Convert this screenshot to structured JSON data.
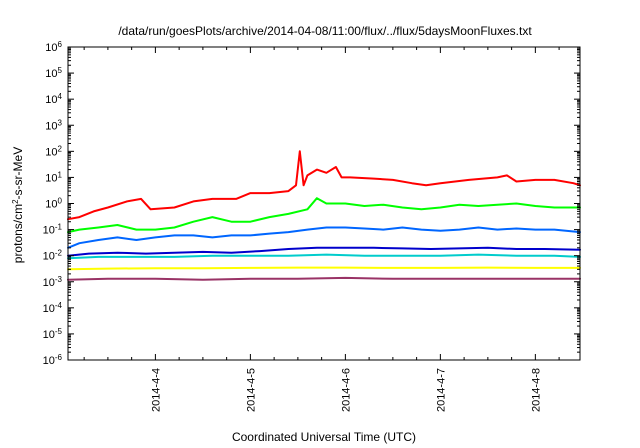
{
  "chart_data": {
    "type": "line",
    "title": "/data/run/goesPlots/archive/2014-04-08/11:00/flux/../flux/5daysMoonFluxes.txt",
    "xlabel": "Coordinated Universal Time (UTC)",
    "ylabel_pre": "protons/cm",
    "ylabel_sup": "2",
    "ylabel_post": "-s-sr-MeV",
    "yscale": "log",
    "ylim": [
      1e-06,
      1000000.0
    ],
    "xlim": [
      3.08,
      8.47
    ],
    "grid": false,
    "legend": "none",
    "x_ticks": [
      {
        "x": 4,
        "label": "2014-4-4"
      },
      {
        "x": 5,
        "label": "2014-4-5"
      },
      {
        "x": 6,
        "label": "2014-4-6"
      },
      {
        "x": 7,
        "label": "2014-4-7"
      },
      {
        "x": 8,
        "label": "2014-4-8"
      }
    ],
    "y_ticks": [
      {
        "exp": -6,
        "label": "10",
        "sup": "-6"
      },
      {
        "exp": -5,
        "label": "10",
        "sup": "-5"
      },
      {
        "exp": -4,
        "label": "10",
        "sup": "-4"
      },
      {
        "exp": -3,
        "label": "10",
        "sup": "-3"
      },
      {
        "exp": -2,
        "label": "10",
        "sup": "-2"
      },
      {
        "exp": -1,
        "label": "10",
        "sup": "-1"
      },
      {
        "exp": 0,
        "label": "10",
        "sup": "0"
      },
      {
        "exp": 1,
        "label": "10",
        "sup": "1"
      },
      {
        "exp": 2,
        "label": "10",
        "sup": "2"
      },
      {
        "exp": 3,
        "label": "10",
        "sup": "3"
      },
      {
        "exp": 4,
        "label": "10",
        "sup": "4"
      },
      {
        "exp": 5,
        "label": "10",
        "sup": "5"
      },
      {
        "exp": 6,
        "label": "10",
        "sup": "6"
      }
    ],
    "series": [
      {
        "color": "#ff0000",
        "x": [
          3.08,
          3.2,
          3.35,
          3.5,
          3.7,
          3.85,
          3.95,
          4.2,
          4.4,
          4.6,
          4.85,
          5.0,
          5.2,
          5.4,
          5.48,
          5.52,
          5.56,
          5.6,
          5.7,
          5.8,
          5.9,
          5.96,
          6.05,
          6.3,
          6.5,
          6.7,
          6.85,
          7.0,
          7.3,
          7.6,
          7.7,
          7.8,
          8.0,
          8.2,
          8.4,
          8.47
        ],
        "y": [
          0.25,
          0.3,
          0.5,
          0.7,
          1.2,
          1.5,
          0.6,
          0.7,
          1.2,
          1.5,
          1.5,
          2.5,
          2.5,
          3,
          5,
          100,
          5,
          12,
          20,
          15,
          25,
          10,
          10,
          9,
          8,
          6,
          5,
          6,
          8,
          10,
          12,
          7,
          8,
          8,
          6,
          5
        ]
      },
      {
        "color": "#00ff00",
        "x": [
          3.08,
          3.2,
          3.4,
          3.6,
          3.8,
          4.0,
          4.2,
          4.4,
          4.6,
          4.8,
          5.0,
          5.2,
          5.4,
          5.6,
          5.7,
          5.8,
          6.0,
          6.2,
          6.4,
          6.6,
          6.8,
          7.0,
          7.2,
          7.4,
          7.6,
          7.8,
          8.0,
          8.2,
          8.47
        ],
        "y": [
          0.08,
          0.1,
          0.12,
          0.15,
          0.1,
          0.1,
          0.12,
          0.2,
          0.3,
          0.2,
          0.2,
          0.3,
          0.4,
          0.6,
          1.6,
          1.0,
          1.0,
          0.8,
          0.9,
          0.7,
          0.6,
          0.7,
          0.9,
          0.8,
          0.9,
          1.0,
          0.8,
          0.7,
          0.7
        ]
      },
      {
        "color": "#0066ff",
        "x": [
          3.08,
          3.2,
          3.4,
          3.6,
          3.8,
          4.0,
          4.2,
          4.4,
          4.6,
          4.8,
          5.0,
          5.2,
          5.4,
          5.6,
          5.8,
          6.0,
          6.2,
          6.4,
          6.6,
          6.8,
          7.0,
          7.2,
          7.4,
          7.6,
          7.8,
          8.0,
          8.2,
          8.47
        ],
        "y": [
          0.02,
          0.03,
          0.04,
          0.05,
          0.04,
          0.05,
          0.06,
          0.06,
          0.05,
          0.06,
          0.06,
          0.07,
          0.08,
          0.1,
          0.12,
          0.12,
          0.11,
          0.1,
          0.12,
          0.1,
          0.09,
          0.1,
          0.12,
          0.1,
          0.11,
          0.1,
          0.1,
          0.08
        ]
      },
      {
        "color": "#0000cc",
        "x": [
          3.08,
          3.3,
          3.6,
          3.9,
          4.2,
          4.5,
          4.8,
          5.1,
          5.4,
          5.7,
          6.0,
          6.3,
          6.6,
          6.9,
          7.2,
          7.5,
          7.8,
          8.1,
          8.47
        ],
        "y": [
          0.01,
          0.012,
          0.013,
          0.012,
          0.013,
          0.014,
          0.013,
          0.015,
          0.018,
          0.02,
          0.02,
          0.02,
          0.019,
          0.018,
          0.019,
          0.02,
          0.018,
          0.018,
          0.017
        ]
      },
      {
        "color": "#00cccc",
        "x": [
          3.08,
          3.4,
          3.8,
          4.2,
          4.6,
          5.0,
          5.4,
          5.8,
          6.2,
          6.6,
          7.0,
          7.4,
          7.8,
          8.2,
          8.47
        ],
        "y": [
          0.008,
          0.009,
          0.009,
          0.009,
          0.01,
          0.01,
          0.01,
          0.011,
          0.01,
          0.01,
          0.01,
          0.011,
          0.01,
          0.01,
          0.009
        ]
      },
      {
        "color": "#ffff00",
        "x": [
          3.08,
          3.5,
          4.0,
          4.5,
          5.0,
          5.5,
          6.0,
          6.5,
          7.0,
          7.5,
          8.0,
          8.47
        ],
        "y": [
          0.003,
          0.0032,
          0.0033,
          0.0033,
          0.0034,
          0.0035,
          0.0035,
          0.0034,
          0.0034,
          0.0035,
          0.0034,
          0.0034
        ]
      },
      {
        "color": "#993366",
        "x": [
          3.08,
          3.5,
          4.0,
          4.5,
          5.0,
          5.5,
          6.0,
          6.5,
          7.0,
          7.5,
          8.0,
          8.47
        ],
        "y": [
          0.0012,
          0.0013,
          0.0013,
          0.0012,
          0.0013,
          0.0013,
          0.0014,
          0.0013,
          0.0013,
          0.0013,
          0.0013,
          0.0013
        ]
      }
    ]
  }
}
